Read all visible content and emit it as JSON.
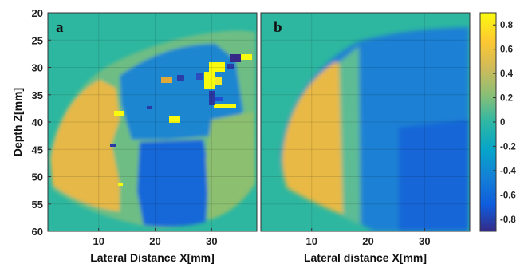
{
  "chart_data": [
    {
      "type": "heatmap",
      "panel_label": "a",
      "xlabel": "Lateral Distance X[mm]",
      "ylabel": "Depth Z[mm]",
      "x_ticks": [
        10,
        20,
        30
      ],
      "y_ticks": [
        20,
        25,
        30,
        35,
        40,
        45,
        50,
        55,
        60
      ],
      "xlim": [
        1,
        38
      ],
      "ylim": [
        20,
        60
      ],
      "y_reversed": true,
      "grid": true,
      "background_value": 0,
      "regions": [
        {
          "desc": "left lobe",
          "value": 0.35,
          "x": [
            2,
            13
          ],
          "z": [
            33,
            57
          ]
        },
        {
          "desc": "central upper",
          "value": -0.35,
          "x": [
            13,
            30
          ],
          "z": [
            26,
            45
          ]
        },
        {
          "desc": "central lower",
          "value": -0.45,
          "x": [
            17,
            27
          ],
          "z": [
            45,
            59
          ]
        },
        {
          "desc": "right side",
          "value": 0.15,
          "x": [
            28,
            37
          ],
          "z": [
            38,
            57
          ]
        },
        {
          "desc": "bright spots",
          "value": 0.85,
          "x": [
            29,
            36
          ],
          "z": [
            28,
            36
          ]
        },
        {
          "desc": "dark spots",
          "value": -0.85,
          "x": [
            29,
            35
          ],
          "z": [
            28,
            36
          ]
        }
      ]
    },
    {
      "type": "heatmap",
      "panel_label": "b",
      "xlabel": "Lateral distance X[mm]",
      "ylabel": "",
      "x_ticks": [
        10,
        20,
        30
      ],
      "xlim": [
        1,
        38
      ],
      "ylim": [
        20,
        60
      ],
      "y_reversed": true,
      "grid": true,
      "background_value": 0,
      "regions": [
        {
          "desc": "left band",
          "value": 0.4,
          "x": [
            3,
            15
          ],
          "z": [
            25,
            57
          ]
        },
        {
          "desc": "middle transition",
          "value": 0.1,
          "x": [
            15,
            18
          ],
          "z": [
            25,
            57
          ]
        },
        {
          "desc": "right band",
          "value": -0.5,
          "x": [
            18,
            37
          ],
          "z": [
            22,
            60
          ]
        }
      ]
    }
  ],
  "colorbar": {
    "ticks": [
      0.8,
      0.6,
      0.4,
      0.2,
      0,
      -0.2,
      -0.4,
      -0.6,
      -0.8
    ],
    "range": [
      -0.9,
      0.9
    ],
    "colormap": "parula"
  }
}
